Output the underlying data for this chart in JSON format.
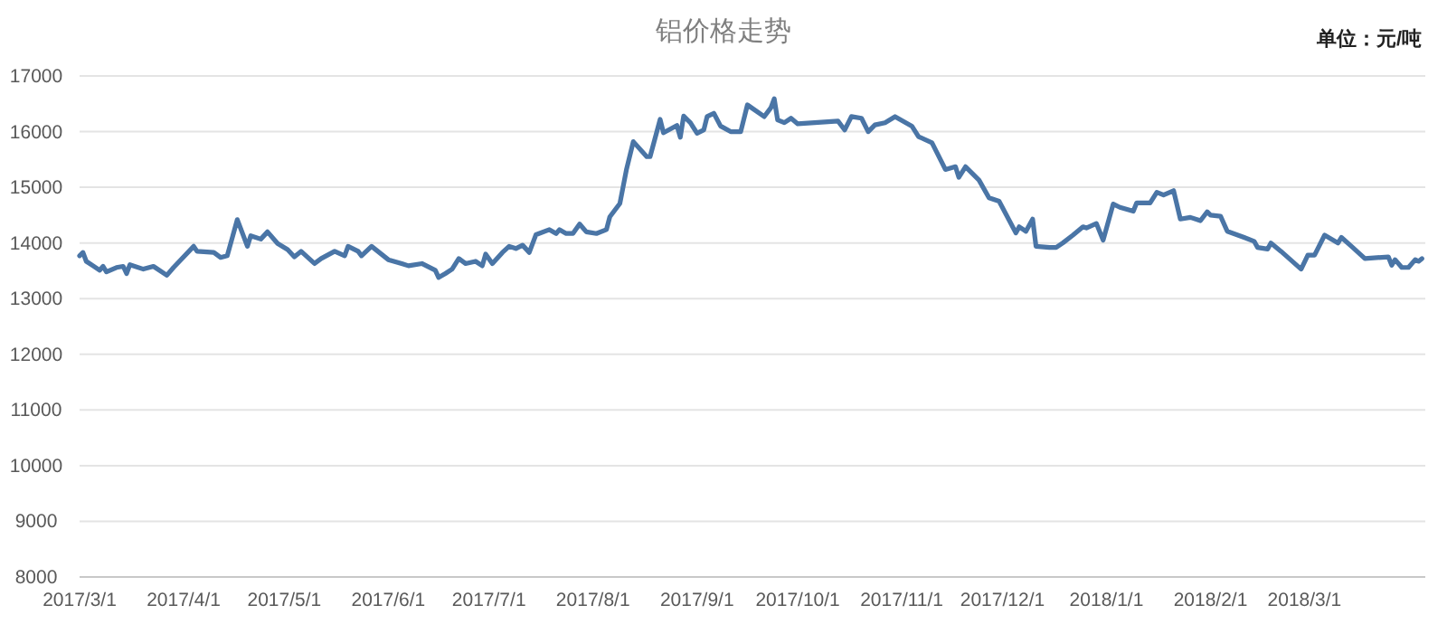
{
  "chart_data": {
    "type": "line",
    "title": "铝价格走势",
    "annotations": [
      "单位：元/吨"
    ],
    "x": [
      "2017-03-01",
      "2017-03-02",
      "2017-03-03",
      "2017-03-05",
      "2017-03-07",
      "2017-03-08",
      "2017-03-09",
      "2017-03-12",
      "2017-03-14",
      "2017-03-15",
      "2017-03-16",
      "2017-03-20",
      "2017-03-23",
      "2017-03-27",
      "2017-03-29",
      "2017-04-04",
      "2017-04-05",
      "2017-04-10",
      "2017-04-12",
      "2017-04-14",
      "2017-04-17",
      "2017-04-20",
      "2017-04-21",
      "2017-04-24",
      "2017-04-26",
      "2017-04-29",
      "2017-05-02",
      "2017-05-04",
      "2017-05-06",
      "2017-05-10",
      "2017-05-12",
      "2017-05-16",
      "2017-05-19",
      "2017-05-20",
      "2017-05-23",
      "2017-05-24",
      "2017-05-27",
      "2017-06-01",
      "2017-06-05",
      "2017-06-07",
      "2017-06-11",
      "2017-06-15",
      "2017-06-16",
      "2017-06-18",
      "2017-06-20",
      "2017-06-22",
      "2017-06-24",
      "2017-06-27",
      "2017-06-29",
      "2017-06-30",
      "2017-07-02",
      "2017-07-05",
      "2017-07-07",
      "2017-07-09",
      "2017-07-11",
      "2017-07-13",
      "2017-07-15",
      "2017-07-19",
      "2017-07-21",
      "2017-07-22",
      "2017-07-24",
      "2017-07-26",
      "2017-07-28",
      "2017-07-30",
      "2017-08-02",
      "2017-08-05",
      "2017-08-06",
      "2017-08-09",
      "2017-08-11",
      "2017-08-13",
      "2017-08-17",
      "2017-08-18",
      "2017-08-21",
      "2017-08-22",
      "2017-08-26",
      "2017-08-27",
      "2017-08-28",
      "2017-08-30",
      "2017-09-01",
      "2017-09-03",
      "2017-09-04",
      "2017-09-06",
      "2017-09-08",
      "2017-09-11",
      "2017-09-14",
      "2017-09-16",
      "2017-09-21",
      "2017-09-23",
      "2017-09-24",
      "2017-09-25",
      "2017-09-27",
      "2017-09-29",
      "2017-10-01",
      "2017-10-13",
      "2017-10-15",
      "2017-10-17",
      "2017-10-20",
      "2017-10-22",
      "2017-10-24",
      "2017-10-27",
      "2017-10-30",
      "2017-11-04",
      "2017-11-06",
      "2017-11-10",
      "2017-11-14",
      "2017-11-17",
      "2017-11-18",
      "2017-11-20",
      "2017-11-24",
      "2017-11-27",
      "2017-11-30",
      "2017-12-05",
      "2017-12-06",
      "2017-12-08",
      "2017-12-10",
      "2017-12-11",
      "2017-12-15",
      "2017-12-17",
      "2017-12-19",
      "2017-12-22",
      "2017-12-25",
      "2017-12-26",
      "2017-12-29",
      "2017-12-31",
      "2018-01-03",
      "2018-01-05",
      "2018-01-09",
      "2018-01-10",
      "2018-01-14",
      "2018-01-16",
      "2018-01-18",
      "2018-01-21",
      "2018-01-23",
      "2018-01-26",
      "2018-01-29",
      "2018-01-31",
      "2018-02-01",
      "2018-02-04",
      "2018-02-06",
      "2018-02-11",
      "2018-02-14",
      "2018-02-15",
      "2018-02-18",
      "2018-02-19",
      "2018-02-22",
      "2018-02-28",
      "2018-03-02",
      "2018-03-04",
      "2018-03-07",
      "2018-03-11",
      "2018-03-12",
      "2018-03-15",
      "2018-03-19",
      "2018-03-26",
      "2018-03-27",
      "2018-03-28",
      "2018-03-30",
      "2018-04-01",
      "2018-04-03",
      "2018-04-04",
      "2018-04-05"
    ],
    "values": [
      13770,
      13830,
      13670,
      13590,
      13510,
      13580,
      13480,
      13560,
      13580,
      13450,
      13610,
      13530,
      13580,
      13420,
      13560,
      13940,
      13850,
      13830,
      13740,
      13770,
      14420,
      13940,
      14130,
      14070,
      14200,
      13990,
      13880,
      13750,
      13850,
      13630,
      13720,
      13850,
      13770,
      13940,
      13850,
      13770,
      13940,
      13700,
      13630,
      13590,
      13630,
      13510,
      13380,
      13450,
      13530,
      13720,
      13630,
      13670,
      13590,
      13800,
      13630,
      13830,
      13940,
      13900,
      13960,
      13830,
      14150,
      14240,
      14170,
      14240,
      14170,
      14170,
      14340,
      14200,
      14170,
      14240,
      14470,
      14710,
      15330,
      15820,
      15550,
      15550,
      16220,
      15980,
      16110,
      15900,
      16280,
      16160,
      15970,
      16030,
      16270,
      16330,
      16100,
      16000,
      16000,
      16480,
      16270,
      16430,
      16590,
      16210,
      16160,
      16240,
      16140,
      16190,
      16030,
      16270,
      16240,
      16000,
      16120,
      16160,
      16270,
      16100,
      15910,
      15800,
      15320,
      15370,
      15180,
      15370,
      15130,
      14810,
      14750,
      14180,
      14290,
      14210,
      14430,
      13940,
      13920,
      13920,
      14000,
      14140,
      14290,
      14270,
      14350,
      14050,
      14700,
      14640,
      14570,
      14720,
      14720,
      14910,
      14860,
      14940,
      14430,
      14460,
      14400,
      14560,
      14500,
      14480,
      14210,
      14100,
      14030,
      13920,
      13890,
      14000,
      13850,
      13530,
      13780,
      13780,
      14140,
      14000,
      14100,
      13940,
      13720,
      13750,
      13600,
      13700,
      13560,
      13560,
      13700,
      13670,
      13720
    ],
    "color": "#4a75a6",
    "xlim": [
      "2017-03-01",
      "2018-04-06"
    ],
    "ylim": [
      8000,
      17000
    ],
    "yticks": [
      8000,
      9000,
      10000,
      11000,
      12000,
      13000,
      14000,
      15000,
      16000,
      17000
    ],
    "xticks": [
      {
        "value": "2017-03-01",
        "label": "2017/3/1"
      },
      {
        "value": "2017-04-01",
        "label": "2017/4/1"
      },
      {
        "value": "2017-05-01",
        "label": "2017/5/1"
      },
      {
        "value": "2017-06-01",
        "label": "2017/6/1"
      },
      {
        "value": "2017-07-01",
        "label": "2017/7/1"
      },
      {
        "value": "2017-08-01",
        "label": "2017/8/1"
      },
      {
        "value": "2017-09-01",
        "label": "2017/9/1"
      },
      {
        "value": "2017-10-01",
        "label": "2017/10/1"
      },
      {
        "value": "2017-11-01",
        "label": "2017/11/1"
      },
      {
        "value": "2017-12-01",
        "label": "2017/12/1"
      },
      {
        "value": "2018-01-01",
        "label": "2018/1/1"
      },
      {
        "value": "2018-02-01",
        "label": "2018/2/1"
      },
      {
        "value": "2018-03-01",
        "label": "2018/3/1"
      }
    ],
    "grid": "y"
  }
}
